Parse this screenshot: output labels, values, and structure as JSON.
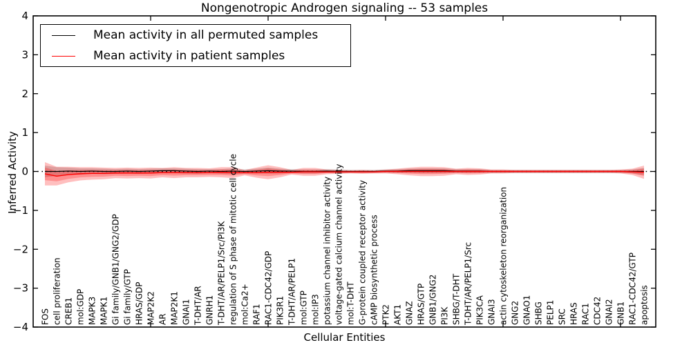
{
  "title": "Nongenotropic Androgen signaling -- 53 samples",
  "legend": {
    "entries": [
      {
        "label": "Mean activity in all permuted samples",
        "color": "#000000"
      },
      {
        "label": "Mean activity in patient samples",
        "color": "#ff0000"
      }
    ]
  },
  "chart_data": {
    "type": "line",
    "title": "Nongenotropic Androgen signaling -- 53 samples",
    "xlabel": "Cellular Entities",
    "ylabel": "Inferred Activity",
    "ylim": [
      -4,
      4
    ],
    "yticks": [
      -4,
      -3,
      -2,
      -1,
      0,
      1,
      2,
      3,
      4
    ],
    "xlim": [
      0,
      53
    ],
    "major_x_ticks": [
      10,
      20,
      30,
      40,
      50
    ],
    "grid": false,
    "legend_position": "upper left",
    "zero_line": {
      "y": 0,
      "style": "dotted",
      "color": "#000000"
    },
    "categories": [
      "FOS",
      "cell proliferation",
      "CREB1",
      "mol:GDP",
      "MAPK3",
      "MAPK1",
      "Gi family/GNB1/GNG2/GDP",
      "Gi family/GTP",
      "HRAS/GDP",
      "MAP2K2",
      "AR",
      "MAP2K1",
      "GNAI1",
      "T-DHT/AR",
      "GNRH1",
      "T-DHT/AR/PELP1/Src/PI3K",
      "regulation of S phase of mitotic cell cycle",
      "mol:Ca2+",
      "RAF1",
      "RAC1-CDC42/GDP",
      "PIK3R1",
      "T-DHT/AR/PELP1",
      "mol:GTP",
      "mol:IP3",
      "potassium channel inhibitor activity",
      "voltage-gated calcium channel activity",
      "mol:T-DHT",
      "G-protein coupled receptor activity",
      "cAMP biosynthetic process",
      "PTK2",
      "AKT1",
      "GNAZ",
      "HRAS/GTP",
      "GNB1/GNG2",
      "PI3K",
      "SHBG/T-DHT",
      "T-DHT/AR/PELP1/Src",
      "PIK3CA",
      "GNAI3",
      "actin cytoskeleton reorganization",
      "GNG2",
      "GNAO1",
      "SHBG",
      "PELP1",
      "SRC",
      "HRAS",
      "RAC1",
      "CDC42",
      "GNAI2",
      "GNB1",
      "RAC1-CDC42/GTP",
      "apoptosis"
    ],
    "series": [
      {
        "name": "Mean activity in all permuted samples",
        "color": "#000000",
        "values": [
          0,
          0,
          0.01,
          0,
          0.01,
          0,
          0,
          0.01,
          0,
          0.01,
          0.02,
          0.02,
          0.01,
          0,
          0.01,
          0,
          0.01,
          0,
          0.01,
          0.02,
          0.01,
          0.01,
          0,
          0,
          0.01,
          0,
          0,
          0,
          0,
          0.01,
          0.01,
          0.02,
          0.02,
          0.02,
          0.02,
          0.01,
          0.01,
          0.01,
          0,
          0,
          0,
          0,
          0,
          0,
          0,
          0,
          0,
          0,
          0,
          0,
          0,
          0
        ]
      },
      {
        "name": "Mean activity in patient samples",
        "color": "#ff0000",
        "values": [
          -0.06,
          -0.12,
          -0.08,
          -0.06,
          -0.05,
          -0.05,
          -0.04,
          -0.04,
          -0.04,
          -0.04,
          -0.03,
          -0.03,
          -0.03,
          -0.03,
          -0.03,
          -0.02,
          -0.03,
          -0.03,
          -0.03,
          -0.02,
          -0.02,
          -0.02,
          -0.01,
          -0.01,
          -0.01,
          -0.01,
          -0.01,
          -0.01,
          -0.01,
          0,
          0,
          0,
          0,
          0,
          0,
          0,
          0,
          0,
          0,
          0,
          0,
          0,
          0,
          0,
          0,
          0,
          0,
          0,
          0,
          0,
          -0.01,
          -0.02
        ]
      }
    ],
    "bands": [
      {
        "name": "permuted-std-band",
        "center_series": 0,
        "color": "rgba(110,110,110,0.30)",
        "std": [
          0.15,
          0.11,
          0.09,
          0.08,
          0.07,
          0.07,
          0.06,
          0.06,
          0.06,
          0.06,
          0.06,
          0.06,
          0.06,
          0.06,
          0.05,
          0.06,
          0.07,
          0.05,
          0.06,
          0.08,
          0.06,
          0.05,
          0.05,
          0.05,
          0.05,
          0.05,
          0.04,
          0.04,
          0.04,
          0.04,
          0.05,
          0.05,
          0.06,
          0.06,
          0.06,
          0.05,
          0.05,
          0.05,
          0.04,
          0.04,
          0.04,
          0.04,
          0.04,
          0.04,
          0.04,
          0.04,
          0.04,
          0.04,
          0.04,
          0.04,
          0.05,
          0.09
        ]
      },
      {
        "name": "patient-std-band",
        "center_series": 1,
        "color": "rgba(255,0,0,0.25)",
        "inner_factor": 0.55,
        "std": [
          0.3,
          0.24,
          0.2,
          0.17,
          0.16,
          0.15,
          0.13,
          0.14,
          0.13,
          0.14,
          0.12,
          0.14,
          0.12,
          0.12,
          0.11,
          0.13,
          0.14,
          0.07,
          0.13,
          0.18,
          0.13,
          0.06,
          0.1,
          0.1,
          0.06,
          0.05,
          0.04,
          0.05,
          0.04,
          0.05,
          0.07,
          0.1,
          0.12,
          0.12,
          0.11,
          0.07,
          0.09,
          0.08,
          0.05,
          0.05,
          0.04,
          0.04,
          0.04,
          0.04,
          0.04,
          0.04,
          0.04,
          0.04,
          0.04,
          0.05,
          0.08,
          0.17
        ]
      }
    ]
  }
}
